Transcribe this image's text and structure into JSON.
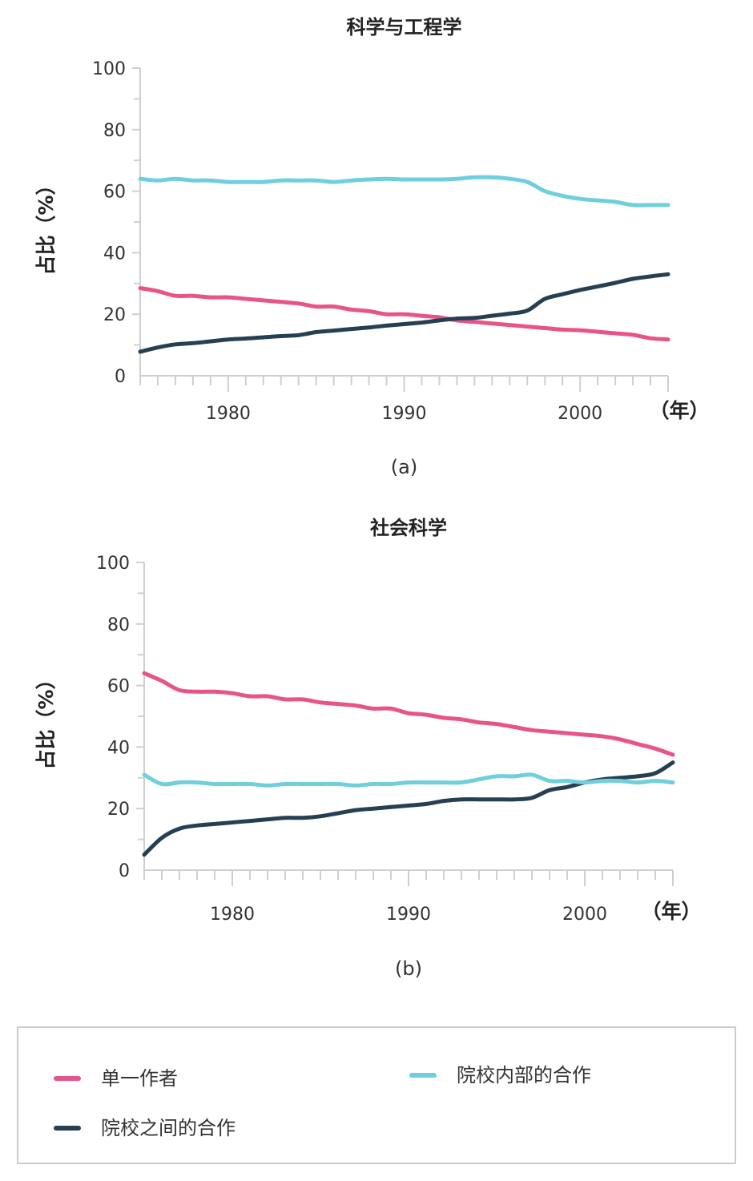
{
  "chart_data": [
    {
      "type": "line",
      "title": "科学与工程学",
      "caption": "(a)",
      "ylabel": "占比（%）",
      "xunit": "（年）",
      "ylim": [
        0,
        100
      ],
      "xlim": [
        1975,
        2005
      ],
      "yticks": [
        "0",
        "20",
        "40",
        "60",
        "80",
        "100"
      ],
      "xticks": [
        "1980",
        "1990",
        "2000"
      ],
      "x": [
        1975,
        1976,
        1977,
        1978,
        1979,
        1980,
        1981,
        1982,
        1983,
        1984,
        1985,
        1986,
        1987,
        1988,
        1989,
        1990,
        1991,
        1992,
        1993,
        1994,
        1995,
        1996,
        1997,
        1998,
        1999,
        2000,
        2001,
        2002,
        2003,
        2004,
        2005
      ],
      "series": [
        {
          "name": "单一作者",
          "color": "#e8548a",
          "values": [
            28.5,
            27.5,
            26,
            26,
            25.5,
            25.5,
            25,
            24.5,
            24,
            23.5,
            22.5,
            22.5,
            21.5,
            21,
            20,
            20,
            19.5,
            19,
            18,
            17.5,
            17,
            16.5,
            16,
            15.5,
            15,
            14.8,
            14.3,
            13.8,
            13.3,
            12.2,
            11.8
          ]
        },
        {
          "name": "院校之间的合作",
          "color": "#263f52",
          "values": [
            7.8,
            9.2,
            10.2,
            10.6,
            11.2,
            11.8,
            12.1,
            12.5,
            12.9,
            13.2,
            14.2,
            14.7,
            15.2,
            15.7,
            16.3,
            16.8,
            17.3,
            18.0,
            18.6,
            18.8,
            19.5,
            20.2,
            21.2,
            25.0,
            26.5,
            27.9,
            29.0,
            30.2,
            31.5,
            32.3,
            33.0
          ]
        },
        {
          "name": "院校内部的合作",
          "color": "#6fcfdc",
          "values": [
            64,
            63.5,
            64,
            63.5,
            63.5,
            63,
            63,
            63,
            63.5,
            63.5,
            63.5,
            63,
            63.5,
            63.8,
            64,
            63.8,
            63.8,
            63.8,
            64,
            64.5,
            64.5,
            64,
            63,
            60,
            58.5,
            57.5,
            57,
            56.5,
            55.5,
            55.5,
            55.5
          ]
        }
      ]
    },
    {
      "type": "line",
      "title": "社会科学",
      "caption": "(b)",
      "ylabel": "占比（%）",
      "xunit": "（年）",
      "ylim": [
        0,
        100
      ],
      "xlim": [
        1975,
        2005
      ],
      "yticks": [
        "0",
        "20",
        "40",
        "60",
        "80",
        "100"
      ],
      "xticks": [
        "1980",
        "1990",
        "2000"
      ],
      "x": [
        1975,
        1976,
        1977,
        1978,
        1979,
        1980,
        1981,
        1982,
        1983,
        1984,
        1985,
        1986,
        1987,
        1988,
        1989,
        1990,
        1991,
        1992,
        1993,
        1994,
        1995,
        1996,
        1997,
        1998,
        1999,
        2000,
        2001,
        2002,
        2003,
        2004,
        2005
      ],
      "series": [
        {
          "name": "单一作者",
          "color": "#e8548a",
          "values": [
            64,
            61.5,
            58.5,
            58,
            58,
            57.5,
            56.5,
            56.5,
            55.5,
            55.5,
            54.5,
            54,
            53.5,
            52.5,
            52.5,
            51,
            50.5,
            49.5,
            49,
            48,
            47.5,
            46.5,
            45.5,
            45,
            44.5,
            44,
            43.5,
            42.5,
            41,
            39.5,
            37.5
          ]
        },
        {
          "name": "院校之间的合作",
          "color": "#263f52",
          "values": [
            5,
            10.5,
            13.5,
            14.5,
            15,
            15.5,
            16,
            16.5,
            17,
            17,
            17.5,
            18.5,
            19.5,
            20,
            20.5,
            21,
            21.5,
            22.5,
            23,
            23,
            23,
            23,
            23.5,
            26,
            27,
            28.5,
            29.5,
            30,
            30.5,
            31.5,
            35
          ]
        },
        {
          "name": "院校内部的合作",
          "color": "#6fcfdc",
          "values": [
            31,
            28,
            28.5,
            28.5,
            28,
            28,
            28,
            27.5,
            28,
            28,
            28,
            28,
            27.5,
            28,
            28,
            28.5,
            28.5,
            28.5,
            28.5,
            29.5,
            30.5,
            30.5,
            31,
            29,
            29,
            28.5,
            29,
            29,
            28.5,
            29,
            28.5
          ]
        }
      ]
    }
  ],
  "legend": {
    "items": [
      {
        "label": "单一作者",
        "color": "#e8548a"
      },
      {
        "label": "院校内部的合作",
        "color": "#6fcfdc"
      },
      {
        "label": "院校之间的合作",
        "color": "#263f52"
      }
    ]
  }
}
